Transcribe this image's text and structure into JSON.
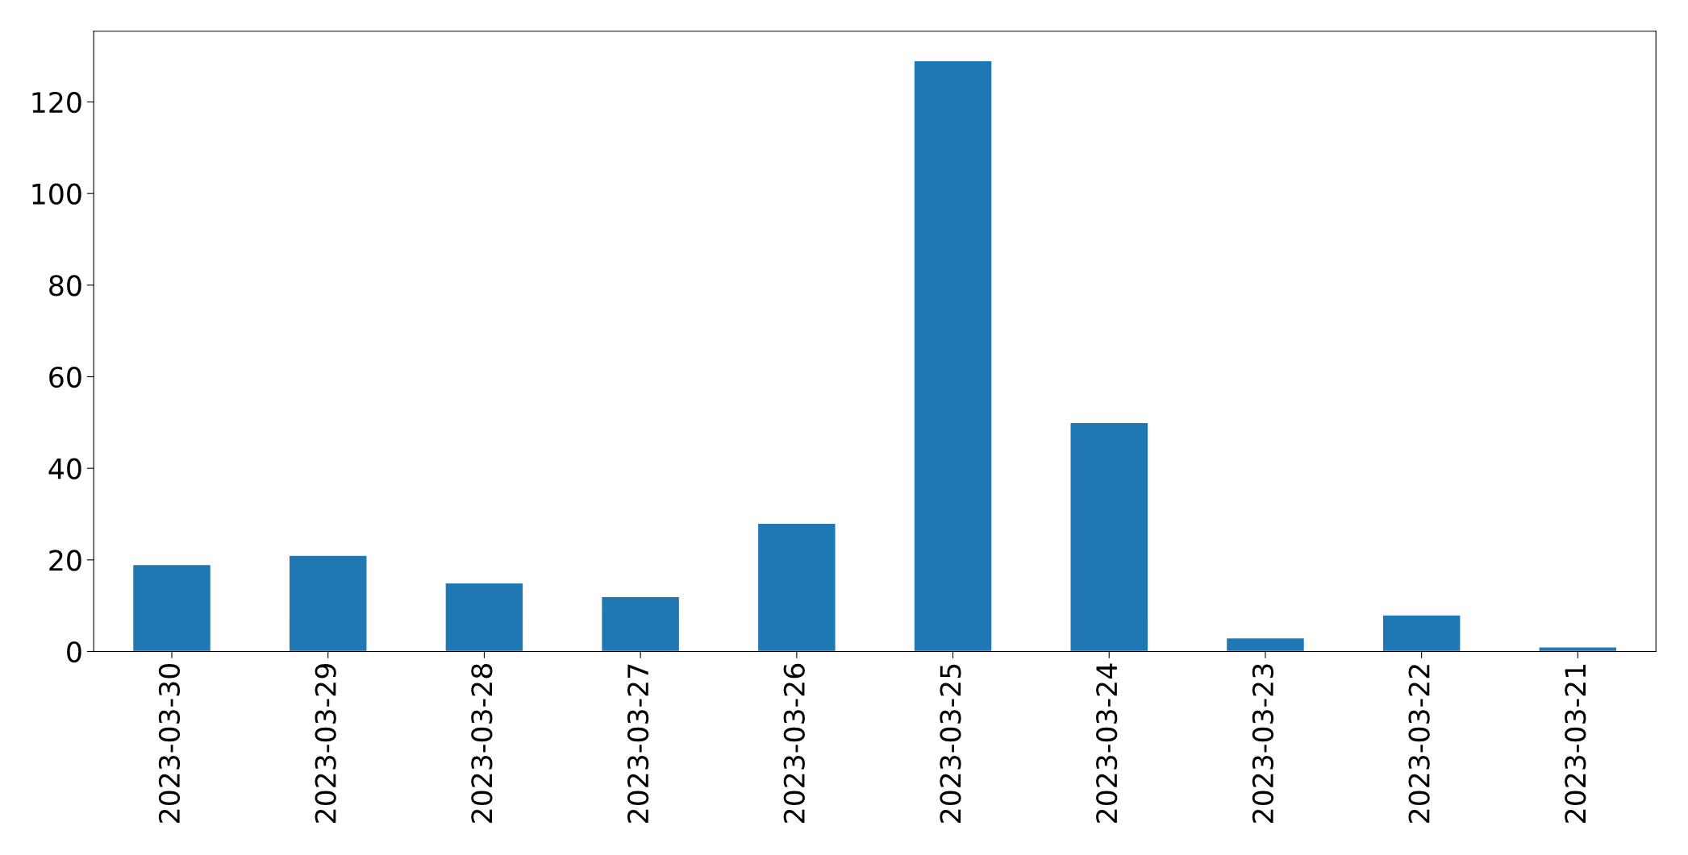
{
  "chart_data": {
    "type": "bar",
    "categories": [
      "2023-03-30",
      "2023-03-29",
      "2023-03-28",
      "2023-03-27",
      "2023-03-26",
      "2023-03-25",
      "2023-03-24",
      "2023-03-23",
      "2023-03-22",
      "2023-03-21"
    ],
    "values": [
      19,
      21,
      15,
      12,
      28,
      129,
      50,
      3,
      8,
      1
    ],
    "color": "#1f77b4",
    "ylim": [
      0,
      135.45
    ],
    "yticks": [
      0,
      20,
      40,
      60,
      80,
      100,
      120
    ],
    "grid": false
  }
}
